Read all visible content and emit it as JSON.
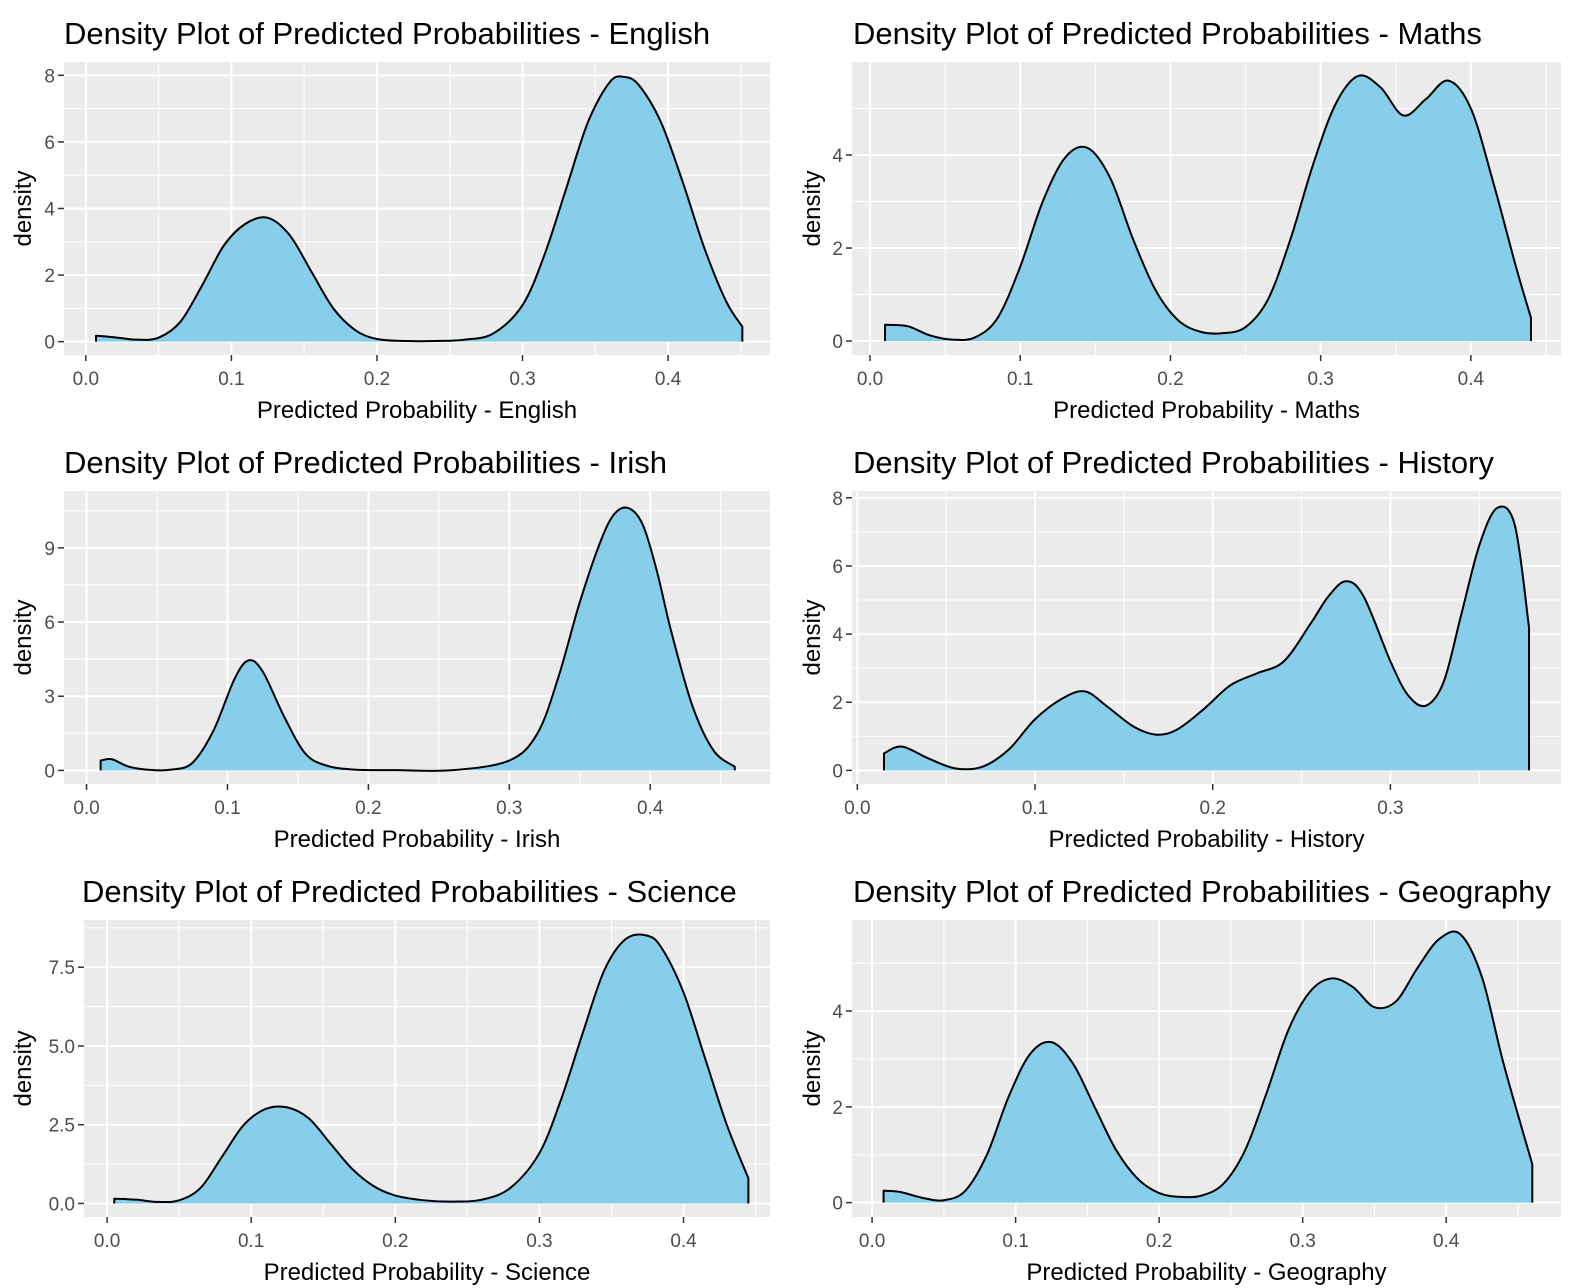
{
  "figure": {
    "background": "#ffffff",
    "panel_background": "#ebebeb",
    "fill_color": "#87ceeb",
    "line_color": "#000000"
  },
  "chart_data": [
    {
      "type": "area",
      "title": "Density Plot of Predicted Probabilities - English",
      "xlabel": "Predicted Probability - English",
      "ylabel": "density",
      "xlim": [
        -0.015,
        0.47
      ],
      "ylim": [
        -0.4,
        8.4
      ],
      "xticks": [
        0.0,
        0.1,
        0.2,
        0.3,
        0.4
      ],
      "xtick_labels": [
        "0.0",
        "0.1",
        "0.2",
        "0.3",
        "0.4"
      ],
      "yticks": [
        0,
        2,
        4,
        6,
        8
      ],
      "ytick_labels": [
        "0",
        "2",
        "4",
        "6",
        "8"
      ],
      "x": [
        0.007,
        0.02,
        0.035,
        0.05,
        0.065,
        0.08,
        0.095,
        0.11,
        0.125,
        0.14,
        0.155,
        0.17,
        0.185,
        0.2,
        0.22,
        0.24,
        0.26,
        0.28,
        0.3,
        0.315,
        0.33,
        0.345,
        0.36,
        0.37,
        0.38,
        0.395,
        0.41,
        0.425,
        0.44,
        0.451
      ],
      "y": [
        0.18,
        0.13,
        0.06,
        0.12,
        0.6,
        1.7,
        2.9,
        3.55,
        3.72,
        3.2,
        2.1,
        1.0,
        0.35,
        0.08,
        0.02,
        0.02,
        0.06,
        0.25,
        1.1,
        2.6,
        4.6,
        6.6,
        7.8,
        7.95,
        7.7,
        6.6,
        4.8,
        2.8,
        1.2,
        0.45
      ]
    },
    {
      "type": "area",
      "title": "Density Plot of Predicted Probabilities - Maths",
      "xlabel": "Predicted Probability - Maths",
      "ylabel": "density",
      "xlim": [
        -0.012,
        0.46
      ],
      "ylim": [
        -0.3,
        6.0
      ],
      "xticks": [
        0.0,
        0.1,
        0.2,
        0.3,
        0.4
      ],
      "xtick_labels": [
        "0.0",
        "0.1",
        "0.2",
        "0.3",
        "0.4"
      ],
      "yticks": [
        0,
        2,
        4
      ],
      "ytick_labels": [
        "0",
        "2",
        "4"
      ],
      "x": [
        0.01,
        0.025,
        0.04,
        0.055,
        0.07,
        0.085,
        0.1,
        0.115,
        0.13,
        0.145,
        0.16,
        0.175,
        0.19,
        0.205,
        0.22,
        0.235,
        0.25,
        0.265,
        0.28,
        0.295,
        0.31,
        0.325,
        0.34,
        0.355,
        0.37,
        0.385,
        0.4,
        0.415,
        0.43,
        0.44
      ],
      "y": [
        0.35,
        0.32,
        0.12,
        0.03,
        0.08,
        0.5,
        1.6,
        3.0,
        3.95,
        4.15,
        3.5,
        2.2,
        1.1,
        0.45,
        0.2,
        0.17,
        0.3,
        0.9,
        2.2,
        3.8,
        5.1,
        5.7,
        5.45,
        4.85,
        5.2,
        5.6,
        5.0,
        3.4,
        1.6,
        0.5
      ]
    },
    {
      "type": "area",
      "title": "Density Plot of Predicted Probabilities - Irish",
      "xlabel": "Predicted Probability - Irish",
      "ylabel": "density",
      "xlim": [
        -0.016,
        0.485
      ],
      "ylim": [
        -0.55,
        11.3
      ],
      "xticks": [
        0.0,
        0.1,
        0.2,
        0.3,
        0.4
      ],
      "xtick_labels": [
        "0.0",
        "0.1",
        "0.2",
        "0.3",
        "0.4"
      ],
      "yticks": [
        0,
        3,
        6,
        9
      ],
      "ytick_labels": [
        "0",
        "3",
        "6",
        "9"
      ],
      "x": [
        0.01,
        0.018,
        0.03,
        0.045,
        0.06,
        0.075,
        0.09,
        0.105,
        0.115,
        0.125,
        0.14,
        0.155,
        0.17,
        0.19,
        0.22,
        0.26,
        0.3,
        0.32,
        0.335,
        0.35,
        0.365,
        0.375,
        0.385,
        0.395,
        0.405,
        0.415,
        0.43,
        0.445,
        0.46
      ],
      "y": [
        0.4,
        0.45,
        0.15,
        0.02,
        0.03,
        0.3,
        1.6,
        3.7,
        4.45,
        4.0,
        2.2,
        0.7,
        0.2,
        0.03,
        0.01,
        0.01,
        0.4,
        1.5,
        3.8,
        6.8,
        9.3,
        10.4,
        10.6,
        9.9,
        8.0,
        5.6,
        2.6,
        0.8,
        0.15
      ]
    },
    {
      "type": "area",
      "title": "Density Plot of Predicted Probabilities - History",
      "xlabel": "Predicted Probability - History",
      "ylabel": "density",
      "xlim": [
        -0.003,
        0.396
      ],
      "ylim": [
        -0.4,
        8.2
      ],
      "xticks": [
        0.0,
        0.1,
        0.2,
        0.3
      ],
      "xtick_labels": [
        "0.0",
        "0.1",
        "0.2",
        "0.3"
      ],
      "yticks": [
        0,
        2,
        4,
        6,
        8
      ],
      "ytick_labels": [
        "0",
        "2",
        "4",
        "6",
        "8"
      ],
      "x": [
        0.015,
        0.025,
        0.04,
        0.055,
        0.07,
        0.085,
        0.1,
        0.115,
        0.128,
        0.14,
        0.155,
        0.168,
        0.18,
        0.195,
        0.21,
        0.225,
        0.24,
        0.255,
        0.265,
        0.275,
        0.285,
        0.3,
        0.31,
        0.32,
        0.33,
        0.34,
        0.35,
        0.36,
        0.37,
        0.378
      ],
      "y": [
        0.5,
        0.7,
        0.35,
        0.06,
        0.1,
        0.6,
        1.5,
        2.1,
        2.32,
        1.9,
        1.3,
        1.05,
        1.2,
        1.8,
        2.5,
        2.85,
        3.2,
        4.3,
        5.1,
        5.55,
        5.1,
        3.2,
        2.2,
        1.9,
        2.6,
        4.6,
        6.6,
        7.7,
        7.2,
        4.2
      ]
    },
    {
      "type": "area",
      "title": "Density Plot of Predicted Probabilities - Science",
      "xlabel": "Predicted Probability - Science",
      "ylabel": "density",
      "xlim": [
        -0.016,
        0.46
      ],
      "ylim": [
        -0.43,
        9.0
      ],
      "xticks": [
        0.0,
        0.1,
        0.2,
        0.3,
        0.4
      ],
      "xtick_labels": [
        "0.0",
        "0.1",
        "0.2",
        "0.3",
        "0.4"
      ],
      "yticks": [
        0.0,
        2.5,
        5.0,
        7.5
      ],
      "ytick_labels": [
        "0.0",
        "2.5",
        "5.0",
        "7.5"
      ],
      "x": [
        0.005,
        0.02,
        0.035,
        0.05,
        0.065,
        0.08,
        0.095,
        0.11,
        0.125,
        0.14,
        0.155,
        0.17,
        0.185,
        0.2,
        0.22,
        0.24,
        0.26,
        0.28,
        0.3,
        0.315,
        0.33,
        0.345,
        0.36,
        0.375,
        0.385,
        0.4,
        0.415,
        0.43,
        0.445
      ],
      "y": [
        0.15,
        0.12,
        0.05,
        0.1,
        0.5,
        1.5,
        2.5,
        3.0,
        3.05,
        2.7,
        1.9,
        1.1,
        0.55,
        0.25,
        0.1,
        0.06,
        0.12,
        0.5,
        1.6,
        3.3,
        5.4,
        7.4,
        8.4,
        8.5,
        8.1,
        6.7,
        4.6,
        2.5,
        0.8
      ]
    },
    {
      "type": "area",
      "title": "Density Plot of Predicted Probabilities - Geography",
      "xlabel": "Predicted Probability - Geography",
      "ylabel": "density",
      "xlim": [
        -0.014,
        0.48
      ],
      "ylim": [
        -0.3,
        5.9
      ],
      "xticks": [
        0.0,
        0.1,
        0.2,
        0.3,
        0.4
      ],
      "xtick_labels": [
        "0.0",
        "0.1",
        "0.2",
        "0.3",
        "0.4"
      ],
      "yticks": [
        0,
        2,
        4
      ],
      "ytick_labels": [
        "0",
        "2",
        "4"
      ],
      "x": [
        0.008,
        0.02,
        0.035,
        0.05,
        0.065,
        0.08,
        0.095,
        0.11,
        0.125,
        0.14,
        0.155,
        0.17,
        0.185,
        0.2,
        0.215,
        0.23,
        0.245,
        0.26,
        0.275,
        0.29,
        0.305,
        0.32,
        0.335,
        0.35,
        0.365,
        0.38,
        0.395,
        0.41,
        0.425,
        0.44,
        0.46
      ],
      "y": [
        0.25,
        0.22,
        0.1,
        0.05,
        0.25,
        1.0,
        2.2,
        3.1,
        3.35,
        2.9,
        2.0,
        1.1,
        0.5,
        0.2,
        0.12,
        0.15,
        0.4,
        1.1,
        2.3,
        3.6,
        4.4,
        4.68,
        4.5,
        4.08,
        4.2,
        4.9,
        5.5,
        5.6,
        4.7,
        2.9,
        0.8
      ]
    }
  ]
}
